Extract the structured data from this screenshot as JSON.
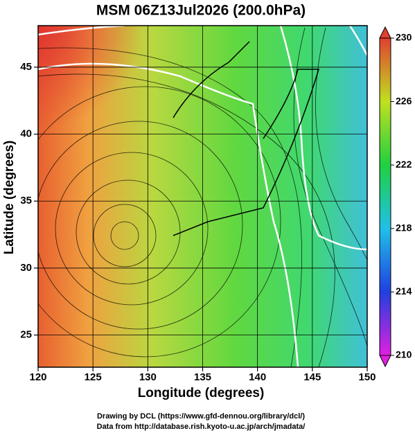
{
  "chart_data": {
    "type": "map",
    "title": "MSM 06Z13Jul2026 (200.0hPa)",
    "x_label": "Longitude (degrees)",
    "y_label": "Latitude  (degrees)",
    "xlim": [
      120,
      150
    ],
    "xticks": [
      120,
      125,
      130,
      135,
      140,
      145,
      150
    ],
    "ylim": [
      22.6,
      48.1
    ],
    "yticks": [
      25,
      30,
      35,
      40,
      45
    ],
    "grid": true,
    "colorbar": {
      "lim": [
        210,
        230
      ],
      "ticks": [
        210,
        214,
        218,
        222,
        226,
        230
      ]
    },
    "credits": [
      "Drawing by DCL (https://www.gfd-dennou.org/library/dcl/)",
      "Data from http://database.rish.kyoto-u.ac.jp/arch/jmadata/"
    ]
  }
}
